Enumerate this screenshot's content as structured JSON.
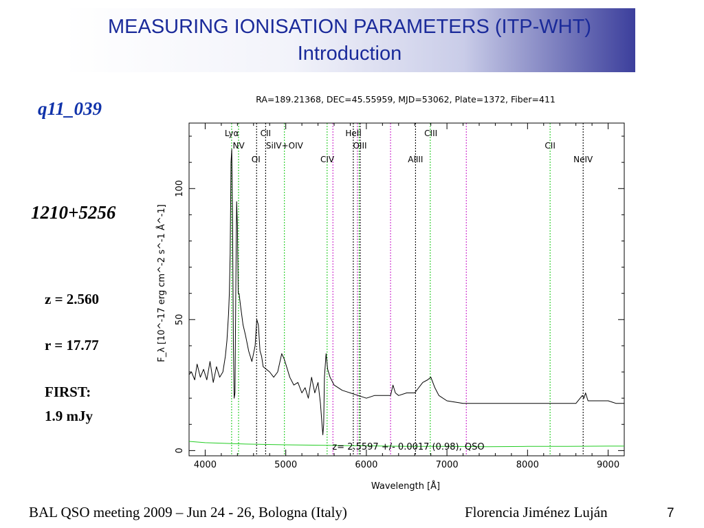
{
  "slide": {
    "title_line1": "MEASURING IONISATION PARAMETERS (ITP-WHT)",
    "title_line2": "Introduction",
    "object_id": "q11_039",
    "coord_name": "1210+5256",
    "redshift": "z = 2.560",
    "rmag": "r = 17.77",
    "first_label": "FIRST:",
    "first_value": "1.9 mJy",
    "footer_left": "BAL QSO meeting 2009 – Jun 24 - 26, Bologna (Italy)",
    "footer_right": "Florencia Jiménez Luján",
    "page_number": "7"
  },
  "colors": {
    "title_text": "#1a2a9a",
    "object_id": "#1133aa",
    "spectrum": "#000000",
    "error": "#22cc22",
    "emission_line": "#22cc22",
    "absorption_line": "#000000",
    "sky_line": "#cc22cc"
  },
  "chart_data": {
    "type": "line",
    "header": "RA=189.21368, DEC=45.55959, MJD=53062, Plate=1372, Fiber=411",
    "xlabel": "Wavelength [Å]",
    "ylabel": "F_λ [10^-17 erg cm^-2 s^-1 Å^-1]",
    "xlim": [
      3800,
      9200
    ],
    "ylim": [
      -2,
      125
    ],
    "x_ticks": [
      4000,
      5000,
      6000,
      7000,
      8000,
      9000
    ],
    "y_ticks": [
      0,
      50,
      100
    ],
    "grid": false,
    "annotation": "z= 2.5597 +/- 0.0017 (0.98), QSO",
    "series": [
      {
        "role": "flux",
        "x": [
          3800,
          3830,
          3870,
          3900,
          3940,
          3980,
          4020,
          4060,
          4100,
          4140,
          4180,
          4220,
          4250,
          4270,
          4290,
          4300,
          4310,
          4320,
          4330,
          4340,
          4350,
          4360,
          4370,
          4380,
          4390,
          4400,
          4410,
          4420,
          4440,
          4470,
          4500,
          4540,
          4580,
          4620,
          4640,
          4660,
          4680,
          4700,
          4720,
          4760,
          4800,
          4850,
          4900,
          4950,
          4980,
          5000,
          5050,
          5100,
          5150,
          5200,
          5240,
          5280,
          5320,
          5360,
          5400,
          5430,
          5450,
          5460,
          5470,
          5480,
          5500,
          5520,
          5550,
          5600,
          5700,
          5800,
          5900,
          6000,
          6100,
          6200,
          6300,
          6330,
          6360,
          6400,
          6500,
          6600,
          6700,
          6760,
          6800,
          6850,
          6900,
          7000,
          7200,
          7500,
          7800,
          8000,
          8200,
          8400,
          8600,
          8680,
          8700,
          8720,
          8750,
          8800,
          8900,
          9000,
          9100,
          9200
        ],
        "y": [
          29,
          30,
          27,
          33,
          28,
          31,
          27,
          34,
          26,
          32,
          28,
          30,
          36,
          42,
          52,
          60,
          75,
          110,
          115,
          86,
          40,
          20,
          22,
          62,
          95,
          86,
          60,
          60,
          55,
          48,
          44,
          38,
          34,
          40,
          50,
          48,
          38,
          36,
          32,
          31,
          30,
          28,
          30,
          37,
          35,
          33,
          28,
          25,
          26,
          22,
          24,
          20,
          28,
          22,
          26,
          18,
          10,
          6,
          10,
          28,
          37,
          31,
          28,
          25,
          23,
          22,
          21,
          20,
          21,
          21,
          21,
          25,
          22,
          21,
          22,
          22,
          26,
          27,
          28,
          24,
          21,
          19,
          18,
          18,
          18,
          18,
          18,
          18,
          18,
          21,
          20,
          22,
          19,
          19,
          19,
          19,
          18,
          18
        ]
      },
      {
        "role": "error",
        "x": [
          3800,
          4000,
          4500,
          5000,
          5500,
          6000,
          6500,
          7000,
          7500,
          8000,
          8500,
          9000,
          9200
        ],
        "y": [
          3.5,
          3.0,
          2.5,
          2.2,
          2.0,
          1.8,
          1.6,
          1.6,
          1.5,
          1.6,
          1.6,
          1.7,
          1.7
        ]
      }
    ],
    "line_markers": [
      {
        "wavelength": 4328,
        "type": "emission"
      },
      {
        "wavelength": 4414,
        "type": "emission"
      },
      {
        "wavelength": 4638,
        "type": "absorption"
      },
      {
        "wavelength": 4750,
        "type": "absorption"
      },
      {
        "wavelength": 4983,
        "type": "emission"
      },
      {
        "wavelength": 5513,
        "type": "emission"
      },
      {
        "wavelength": 5585,
        "type": "sky"
      },
      {
        "wavelength": 5838,
        "type": "absorption"
      },
      {
        "wavelength": 5889,
        "type": "sky"
      },
      {
        "wavelength": 5910,
        "type": "emission"
      },
      {
        "wavelength": 5924,
        "type": "absorption"
      },
      {
        "wavelength": 6300,
        "type": "sky"
      },
      {
        "wavelength": 6610,
        "type": "absorption"
      },
      {
        "wavelength": 6793,
        "type": "emission"
      },
      {
        "wavelength": 7240,
        "type": "sky"
      },
      {
        "wavelength": 8280,
        "type": "emission"
      },
      {
        "wavelength": 8690,
        "type": "absorption"
      }
    ],
    "line_labels": [
      {
        "text": "Lyα",
        "wavelength": 4330,
        "row": 1
      },
      {
        "text": "NV",
        "wavelength": 4415,
        "row": 2
      },
      {
        "text": "CII",
        "wavelength": 4750,
        "row": 1
      },
      {
        "text": "OI",
        "wavelength": 4630,
        "row": 3
      },
      {
        "text": "SiIV+OIV",
        "wavelength": 4985,
        "row": 2
      },
      {
        "text": "CIV",
        "wavelength": 5515,
        "row": 3
      },
      {
        "text": "HeII",
        "wavelength": 5840,
        "row": 1
      },
      {
        "text": "OIII",
        "wavelength": 5920,
        "row": 2
      },
      {
        "text": "AlIII",
        "wavelength": 6610,
        "row": 3
      },
      {
        "text": "CIII",
        "wavelength": 6800,
        "row": 1
      },
      {
        "text": "CII",
        "wavelength": 8280,
        "row": 2
      },
      {
        "text": "NeIV",
        "wavelength": 8690,
        "row": 3
      }
    ]
  }
}
